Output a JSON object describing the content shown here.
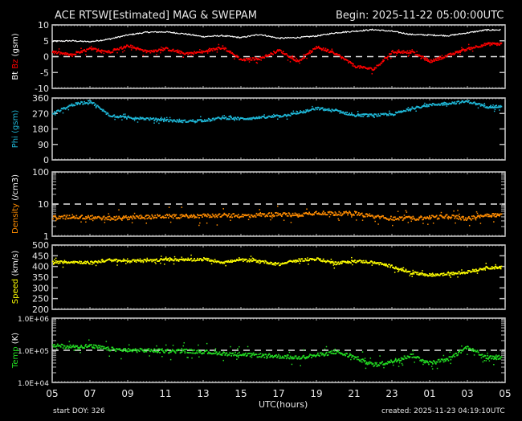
{
  "header": {
    "title": "ACE RTSW[Estimated] MAG & SWEPAM",
    "begin": "Begin: 2025-11-22 05:00:00UTC"
  },
  "footer": {
    "start_doy": "start DOY: 326",
    "created": "created: 2025-11-23 04:19:10UTC",
    "xlabel": "UTC(hours)"
  },
  "colors": {
    "background": "#000000",
    "axes": "#ffffff",
    "bt": "#ffffff",
    "bz": "#ff0000",
    "phi": "#1fb8d8",
    "density": "#ff8c00",
    "speed": "#ffff00",
    "temp": "#22dd22"
  },
  "panels": [
    {
      "id": "mag",
      "ylabel_parts": [
        {
          "text": "Bt",
          "color": "#ffffff"
        },
        {
          "text": " Bz",
          "color": "#ff0000"
        },
        {
          "text": " (gsm)",
          "color": "#ffffff"
        }
      ],
      "yticks": [
        "10",
        "5",
        "0",
        "-5",
        "-10"
      ]
    },
    {
      "id": "phi",
      "ylabel_parts": [
        {
          "text": "Phi",
          "color": "#1fb8d8"
        },
        {
          "text": " (gsm)",
          "color": "#1fb8d8"
        }
      ],
      "yticks": [
        "360",
        "270",
        "180",
        "90",
        "0"
      ]
    },
    {
      "id": "density",
      "ylabel_parts": [
        {
          "text": "Density",
          "color": "#ff8c00"
        },
        {
          "text": " (/cm3)",
          "color": "#ffffff"
        }
      ],
      "yticks": [
        "100",
        "10",
        "1"
      ]
    },
    {
      "id": "speed",
      "ylabel_parts": [
        {
          "text": "Speed",
          "color": "#ffff00"
        },
        {
          "text": " (km/s)",
          "color": "#ffffff"
        }
      ],
      "yticks": [
        "500",
        "450",
        "400",
        "350",
        "300",
        "250",
        "200"
      ]
    },
    {
      "id": "temp",
      "ylabel_parts": [
        {
          "text": "Temp",
          "color": "#22dd22"
        },
        {
          "text": " (K)",
          "color": "#ffffff"
        }
      ],
      "yticks": [
        "1.0E+06",
        "1.0E+05",
        "1.0E+04"
      ]
    }
  ],
  "xticks": [
    "05",
    "07",
    "09",
    "11",
    "13",
    "15",
    "17",
    "19",
    "21",
    "23",
    "01",
    "03",
    "05"
  ],
  "chart_data": [
    {
      "type": "line",
      "title": "ACE RTSW[Estimated] MAG & SWEPAM",
      "xlabel": "UTC(hours)",
      "ylabel": "Bt Bz (gsm)",
      "ylim": [
        -10,
        10
      ],
      "x": [
        5,
        6,
        7,
        8,
        9,
        10,
        11,
        12,
        13,
        14,
        15,
        16,
        17,
        18,
        19,
        20,
        21,
        22,
        23,
        24,
        25,
        26,
        27,
        28,
        29
      ],
      "xtick_labels": [
        "05",
        "07",
        "09",
        "11",
        "13",
        "15",
        "17",
        "19",
        "21",
        "23",
        "01",
        "03",
        "05"
      ],
      "reference_lines": [
        0
      ],
      "series": [
        {
          "name": "Bt",
          "color": "#ffffff",
          "values": [
            4.8,
            5.0,
            4.7,
            5.5,
            6.8,
            7.7,
            7.8,
            7.2,
            6.3,
            6.6,
            6.0,
            7.0,
            5.8,
            6.0,
            6.5,
            7.5,
            8.0,
            8.5,
            8.0,
            7.0,
            6.8,
            6.6,
            7.5,
            8.4,
            null
          ]
        },
        {
          "name": "Bz",
          "color": "#ff0000",
          "values": [
            1.5,
            0.5,
            2.5,
            1.5,
            3.5,
            1.5,
            2.5,
            1.0,
            1.5,
            3.0,
            -1.0,
            -0.5,
            2.0,
            -1.5,
            3.0,
            1.0,
            -3.0,
            -4.0,
            1.5,
            1.5,
            -1.5,
            0.5,
            2.5,
            4.0,
            null
          ]
        }
      ]
    },
    {
      "type": "scatter",
      "ylabel": "Phi (gsm)",
      "ylim": [
        0,
        360
      ],
      "x": [
        5,
        6,
        7,
        8,
        9,
        10,
        11,
        12,
        13,
        14,
        15,
        16,
        17,
        18,
        19,
        20,
        21,
        22,
        23,
        24,
        25,
        26,
        27,
        28,
        29
      ],
      "series": [
        {
          "name": "Phi",
          "color": "#1fb8d8",
          "values": [
            270,
            320,
            340,
            260,
            245,
            240,
            230,
            225,
            230,
            245,
            240,
            245,
            255,
            270,
            300,
            285,
            260,
            260,
            265,
            300,
            320,
            330,
            340,
            310,
            null
          ]
        }
      ]
    },
    {
      "type": "scatter",
      "ylabel": "Density (/cm3)",
      "yscale": "log",
      "ylim": [
        1,
        100
      ],
      "reference_lines": [
        10
      ],
      "x": [
        5,
        6,
        7,
        8,
        9,
        10,
        11,
        12,
        13,
        14,
        15,
        16,
        17,
        18,
        19,
        20,
        21,
        22,
        23,
        24,
        25,
        26,
        27,
        28,
        29
      ],
      "series": [
        {
          "name": "Density",
          "color": "#ff8c00",
          "values": [
            3.8,
            4.0,
            3.9,
            3.6,
            3.8,
            4.0,
            4.2,
            4.1,
            4.3,
            4.5,
            4.3,
            4.6,
            4.8,
            4.6,
            5.5,
            5.0,
            5.2,
            4.0,
            3.6,
            3.6,
            3.8,
            4.2,
            3.5,
            4.6,
            null
          ]
        }
      ]
    },
    {
      "type": "scatter",
      "ylabel": "Speed (km/s)",
      "ylim": [
        200,
        500
      ],
      "x": [
        5,
        6,
        7,
        8,
        9,
        10,
        11,
        12,
        13,
        14,
        15,
        16,
        17,
        18,
        19,
        20,
        21,
        22,
        23,
        24,
        25,
        26,
        27,
        28,
        29
      ],
      "series": [
        {
          "name": "Speed",
          "color": "#ffff00",
          "values": [
            420,
            422,
            418,
            430,
            425,
            428,
            432,
            430,
            435,
            420,
            430,
            425,
            410,
            430,
            435,
            415,
            425,
            420,
            400,
            370,
            360,
            365,
            375,
            395,
            null
          ]
        }
      ]
    },
    {
      "type": "scatter",
      "ylabel": "Temp (K)",
      "yscale": "log",
      "ylim": [
        10000,
        1000000
      ],
      "reference_lines": [
        100000
      ],
      "x": [
        5,
        6,
        7,
        8,
        9,
        10,
        11,
        12,
        13,
        14,
        15,
        16,
        17,
        18,
        19,
        20,
        21,
        22,
        23,
        24,
        25,
        26,
        27,
        28,
        29
      ],
      "series": [
        {
          "name": "Temp",
          "color": "#22dd22",
          "values": [
            140000,
            130000,
            135000,
            110000,
            100000,
            100000,
            95000,
            95000,
            90000,
            80000,
            75000,
            70000,
            65000,
            60000,
            70000,
            90000,
            60000,
            35000,
            45000,
            70000,
            40000,
            55000,
            130000,
            60000,
            null
          ]
        }
      ]
    }
  ]
}
